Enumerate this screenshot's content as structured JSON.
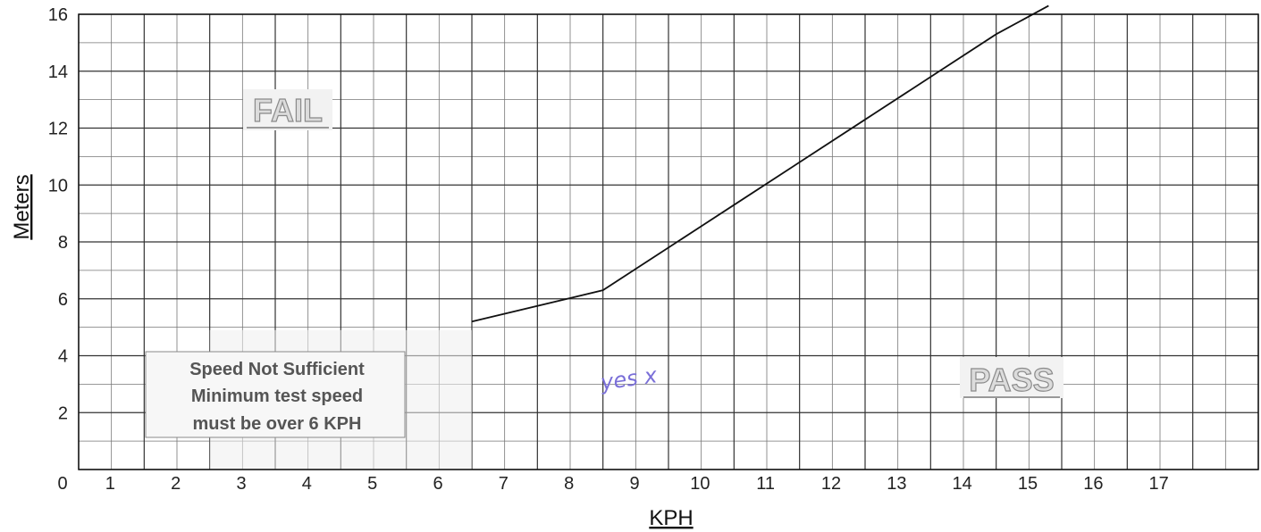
{
  "chart_data": {
    "type": "line",
    "xlabel": "KPH",
    "ylabel": "Meters",
    "xlim": [
      0,
      18
    ],
    "ylim": [
      0,
      16
    ],
    "x_ticks": [
      "0",
      "1",
      "2",
      "3",
      "4",
      "5",
      "6",
      "7",
      "8",
      "9",
      "10",
      "11",
      "12",
      "13",
      "14",
      "15",
      "16",
      "17"
    ],
    "y_ticks": [
      "2",
      "4",
      "6",
      "8",
      "10",
      "12",
      "14",
      "16"
    ],
    "grid": true,
    "series": [
      {
        "x": [
          6,
          8,
          9,
          10,
          11,
          12,
          13,
          14,
          14.8
        ],
        "y": [
          5.2,
          6.3,
          7.8,
          9.3,
          10.8,
          12.3,
          13.8,
          15.3,
          16.3
        ],
        "color": "#111111"
      }
    ],
    "annotations": {
      "fail_label": "FAIL",
      "pass_label": "PASS",
      "note_lines": [
        "Speed Not Sufficient",
        "Minimum test speed",
        "must be over 6 KPH"
      ],
      "handwriting": "yes x"
    }
  }
}
